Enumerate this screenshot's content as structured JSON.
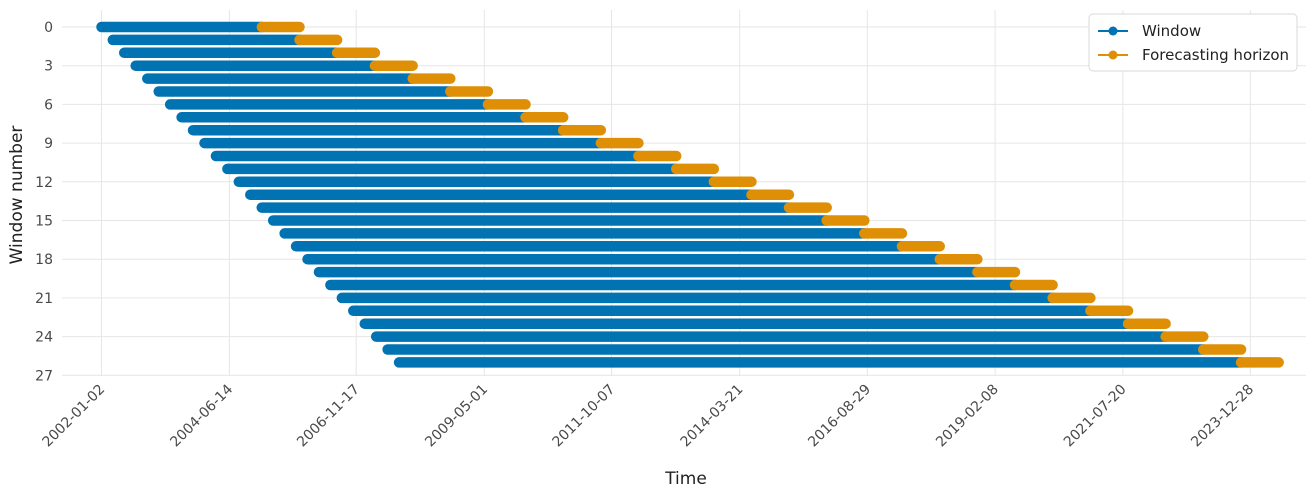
{
  "chart_data": {
    "type": "bar",
    "subtype": "horizontal-timeline",
    "xlabel": "Time",
    "ylabel": "Window number",
    "x_ticks": [
      "2002-01-02",
      "2004-06-14",
      "2006-11-17",
      "2009-05-01",
      "2011-10-07",
      "2014-03-21",
      "2016-08-29",
      "2019-02-08",
      "2021-07-20",
      "2023-12-28"
    ],
    "y_ticks": [
      "0",
      "3",
      "6",
      "9",
      "12",
      "15",
      "18",
      "21",
      "24",
      "27"
    ],
    "xlim": [
      "2001-04-01",
      "2025-01-20"
    ],
    "ylim": [
      27,
      0
    ],
    "grid": true,
    "legend_position": "top-right",
    "series": [
      {
        "name": "Window",
        "color": "#0173b2"
      },
      {
        "name": "Forecasting horizon",
        "color": "#de8f05"
      }
    ],
    "windows": [
      {
        "window": 0,
        "train_start": "2002-01-02",
        "train_end": "2005-01-27",
        "horizon_end": "2005-10-17"
      },
      {
        "window": 1,
        "train_start": "2002-03-22",
        "train_end": "2005-10-17",
        "horizon_end": "2006-07-07"
      },
      {
        "window": 2,
        "train_start": "2002-06-10",
        "train_end": "2006-07-07",
        "horizon_end": "2007-03-28"
      },
      {
        "window": 3,
        "train_start": "2002-08-29",
        "train_end": "2007-03-28",
        "horizon_end": "2007-12-17"
      },
      {
        "window": 4,
        "train_start": "2002-11-18",
        "train_end": "2007-12-17",
        "horizon_end": "2008-09-05"
      },
      {
        "window": 5,
        "train_start": "2003-02-06",
        "train_end": "2008-09-05",
        "horizon_end": "2009-05-26"
      },
      {
        "window": 6,
        "train_start": "2003-04-27",
        "train_end": "2009-05-26",
        "horizon_end": "2010-02-13"
      },
      {
        "window": 7,
        "train_start": "2003-07-16",
        "train_end": "2010-02-13",
        "horizon_end": "2010-11-03"
      },
      {
        "window": 8,
        "train_start": "2003-10-04",
        "train_end": "2010-11-03",
        "horizon_end": "2011-07-24"
      },
      {
        "window": 9,
        "train_start": "2003-12-23",
        "train_end": "2011-07-24",
        "horizon_end": "2012-04-12"
      },
      {
        "window": 10,
        "train_start": "2004-03-12",
        "train_end": "2012-04-12",
        "horizon_end": "2013-01-01"
      },
      {
        "window": 11,
        "train_start": "2004-05-31",
        "train_end": "2013-01-01",
        "horizon_end": "2013-09-21"
      },
      {
        "window": 12,
        "train_start": "2004-08-19",
        "train_end": "2013-09-21",
        "horizon_end": "2014-06-11"
      },
      {
        "window": 13,
        "train_start": "2004-11-07",
        "train_end": "2014-06-11",
        "horizon_end": "2015-02-28"
      },
      {
        "window": 14,
        "train_start": "2005-01-26",
        "train_end": "2015-02-28",
        "horizon_end": "2015-11-19"
      },
      {
        "window": 15,
        "train_start": "2005-04-16",
        "train_end": "2015-11-19",
        "horizon_end": "2016-08-08"
      },
      {
        "window": 16,
        "train_start": "2005-07-05",
        "train_end": "2016-08-08",
        "horizon_end": "2017-04-28"
      },
      {
        "window": 17,
        "train_start": "2005-09-23",
        "train_end": "2017-04-28",
        "horizon_end": "2018-01-17"
      },
      {
        "window": 18,
        "train_start": "2005-12-12",
        "train_end": "2018-01-17",
        "horizon_end": "2018-10-07"
      },
      {
        "window": 19,
        "train_start": "2006-03-02",
        "train_end": "2018-10-07",
        "horizon_end": "2019-06-27"
      },
      {
        "window": 20,
        "train_start": "2006-05-21",
        "train_end": "2019-06-27",
        "horizon_end": "2020-03-16"
      },
      {
        "window": 21,
        "train_start": "2006-08-09",
        "train_end": "2020-03-16",
        "horizon_end": "2020-12-05"
      },
      {
        "window": 22,
        "train_start": "2006-10-28",
        "train_end": "2020-12-05",
        "horizon_end": "2021-08-25"
      },
      {
        "window": 23,
        "train_start": "2007-01-16",
        "train_end": "2021-08-25",
        "horizon_end": "2022-05-15"
      },
      {
        "window": 24,
        "train_start": "2007-04-06",
        "train_end": "2022-05-15",
        "horizon_end": "2023-02-02"
      },
      {
        "window": 25,
        "train_start": "2007-06-25",
        "train_end": "2023-02-02",
        "horizon_end": "2023-10-24"
      },
      {
        "window": 26,
        "train_start": "2007-09-13",
        "train_end": "2023-10-24",
        "horizon_end": "2024-07-13"
      }
    ]
  }
}
